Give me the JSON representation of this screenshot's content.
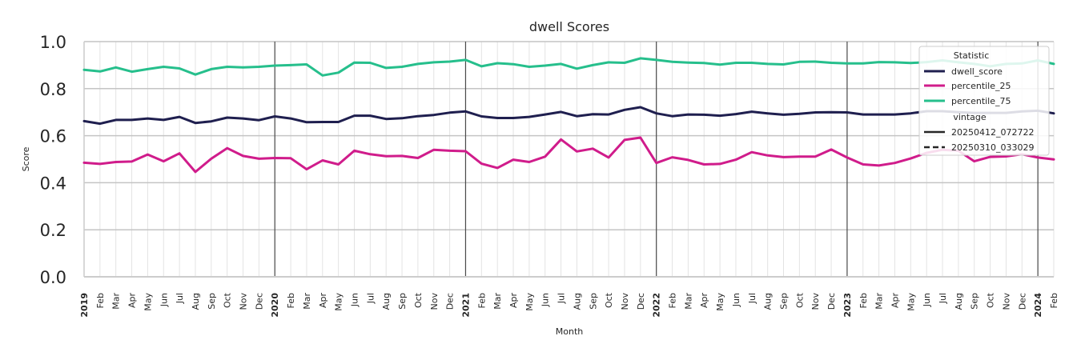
{
  "chart_data": {
    "type": "line",
    "title": "dwell Scores",
    "xlabel": "Month",
    "ylabel": "Score",
    "ylim": [
      0.0,
      1.0
    ],
    "yticks": [
      "0.0",
      "0.2",
      "0.4",
      "0.6",
      "0.8",
      "1.0"
    ],
    "grid": true,
    "legend_position": "top-right",
    "x_tick_labels": [
      "2019",
      "Feb",
      "Mar",
      "Apr",
      "May",
      "Jun",
      "Jul",
      "Aug",
      "Sep",
      "Oct",
      "Nov",
      "Dec",
      "2020",
      "Feb",
      "Mar",
      "Apr",
      "May",
      "Jun",
      "Jul",
      "Aug",
      "Sep",
      "Oct",
      "Nov",
      "Dec",
      "2021",
      "Feb",
      "Mar",
      "Apr",
      "May",
      "Jun",
      "Jul",
      "Aug",
      "Sep",
      "Oct",
      "Nov",
      "Dec",
      "2022",
      "Feb",
      "Mar",
      "Apr",
      "May",
      "Jun",
      "Jul",
      "Aug",
      "Sep",
      "Oct",
      "Nov",
      "Dec",
      "2023",
      "Feb",
      "Mar",
      "Apr",
      "May",
      "Jun",
      "Jul",
      "Aug",
      "Sep",
      "Oct",
      "Nov",
      "Dec",
      "2024",
      "Feb"
    ],
    "x": [
      "2019-01",
      "2019-02",
      "2019-03",
      "2019-04",
      "2019-05",
      "2019-06",
      "2019-07",
      "2019-08",
      "2019-09",
      "2019-10",
      "2019-11",
      "2019-12",
      "2020-01",
      "2020-02",
      "2020-03",
      "2020-04",
      "2020-05",
      "2020-06",
      "2020-07",
      "2020-08",
      "2020-09",
      "2020-10",
      "2020-11",
      "2020-12",
      "2021-01",
      "2021-02",
      "2021-03",
      "2021-04",
      "2021-05",
      "2021-06",
      "2021-07",
      "2021-08",
      "2021-09",
      "2021-10",
      "2021-11",
      "2021-12",
      "2022-01",
      "2022-02",
      "2022-03",
      "2022-04",
      "2022-05",
      "2022-06",
      "2022-07",
      "2022-08",
      "2022-09",
      "2022-10",
      "2022-11",
      "2022-12",
      "2023-01",
      "2023-02",
      "2023-03",
      "2023-04",
      "2023-05",
      "2023-06",
      "2023-07",
      "2023-08",
      "2023-09",
      "2023-10",
      "2023-11",
      "2023-12",
      "2024-01",
      "2024-02"
    ],
    "series": [
      {
        "name": "dwell_score",
        "color": "#1f1f4f",
        "vintage": "20250412_072722",
        "values": [
          0.662,
          0.651,
          0.667,
          0.667,
          0.673,
          0.667,
          0.68,
          0.654,
          0.661,
          0.677,
          0.673,
          0.666,
          0.682,
          0.673,
          0.657,
          0.658,
          0.658,
          0.685,
          0.685,
          0.671,
          0.674,
          0.683,
          0.688,
          0.698,
          0.703,
          0.682,
          0.675,
          0.675,
          0.68,
          0.69,
          0.701,
          0.683,
          0.691,
          0.69,
          0.71,
          0.721,
          0.695,
          0.683,
          0.69,
          0.689,
          0.685,
          0.692,
          0.702,
          0.695,
          0.689,
          0.693,
          0.699,
          0.7,
          0.699,
          0.69,
          0.69,
          0.69,
          0.695,
          0.704,
          0.704,
          0.7,
          0.697,
          0.697,
          0.697,
          0.703,
          0.706,
          0.695
        ]
      },
      {
        "name": "percentile_25",
        "color": "#d01c8b",
        "vintage": "20250412_072722",
        "values": [
          0.485,
          0.48,
          0.488,
          0.49,
          0.52,
          0.491,
          0.525,
          0.446,
          0.502,
          0.547,
          0.514,
          0.502,
          0.505,
          0.504,
          0.457,
          0.495,
          0.478,
          0.536,
          0.521,
          0.513,
          0.514,
          0.505,
          0.54,
          0.536,
          0.534,
          0.481,
          0.463,
          0.498,
          0.488,
          0.511,
          0.584,
          0.533,
          0.545,
          0.507,
          0.582,
          0.592,
          0.484,
          0.508,
          0.497,
          0.478,
          0.48,
          0.498,
          0.53,
          0.516,
          0.509,
          0.511,
          0.511,
          0.541,
          0.507,
          0.478,
          0.473,
          0.484,
          0.503,
          0.527,
          0.54,
          0.536,
          0.491,
          0.51,
          0.512,
          0.521,
          0.507,
          0.499
        ]
      },
      {
        "name": "percentile_75",
        "color": "#26bf8c",
        "vintage": "20250412_072722",
        "values": [
          0.88,
          0.873,
          0.89,
          0.872,
          0.883,
          0.893,
          0.886,
          0.86,
          0.883,
          0.893,
          0.89,
          0.893,
          0.898,
          0.9,
          0.903,
          0.856,
          0.868,
          0.911,
          0.91,
          0.888,
          0.893,
          0.905,
          0.912,
          0.915,
          0.922,
          0.895,
          0.908,
          0.904,
          0.893,
          0.898,
          0.905,
          0.885,
          0.9,
          0.912,
          0.91,
          0.929,
          0.922,
          0.914,
          0.911,
          0.909,
          0.902,
          0.91,
          0.91,
          0.905,
          0.903,
          0.914,
          0.915,
          0.91,
          0.907,
          0.907,
          0.913,
          0.912,
          0.909,
          0.913,
          0.92,
          0.912,
          0.905,
          0.895,
          0.905,
          0.907,
          0.92,
          0.905
        ]
      }
    ],
    "legend": {
      "header_statistic": "Statistic",
      "items": [
        {
          "label": "dwell_score",
          "color": "#1f1f4f",
          "style": "solid"
        },
        {
          "label": "percentile_25",
          "color": "#d01c8b",
          "style": "solid"
        },
        {
          "label": "percentile_75",
          "color": "#26bf8c",
          "style": "solid"
        }
      ],
      "header_vintage": "vintage",
      "vintages": [
        {
          "label": "20250412_072722",
          "style": "solid"
        },
        {
          "label": "20250310_033029",
          "style": "dashed"
        }
      ]
    }
  }
}
